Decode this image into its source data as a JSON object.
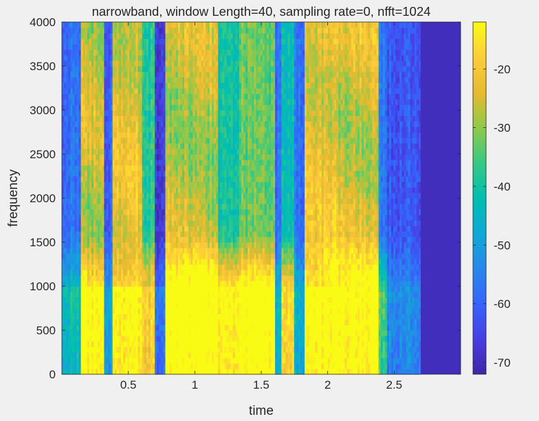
{
  "chart_data": {
    "type": "heatmap",
    "title": "narrowband, window Length=40, sampling rate=0, nfft=1024",
    "xlabel": "time",
    "ylabel": "frequency",
    "xlim": [
      0.0,
      3.0
    ],
    "ylim": [
      0,
      4000
    ],
    "x_ticks": [
      0.5,
      1,
      1.5,
      2,
      2.5
    ],
    "x_tick_labels": [
      "0.5",
      "1",
      "1.5",
      "2",
      "2.5"
    ],
    "y_ticks": [
      0,
      500,
      1000,
      1500,
      2000,
      2500,
      3000,
      3500,
      4000
    ],
    "y_tick_labels": [
      "0",
      "500",
      "1000",
      "1500",
      "2000",
      "2500",
      "3000",
      "3500",
      "4000"
    ],
    "colorbar": {
      "colormap": "parula",
      "range": [
        -72,
        -12
      ],
      "ticks": [
        -20,
        -30,
        -40,
        -50,
        -60,
        -70
      ],
      "tick_labels": [
        "-20",
        "-30",
        "-40",
        "-50",
        "-60",
        "-70"
      ]
    },
    "signal_end_time": 2.7,
    "silence_level": -70,
    "segments": [
      {
        "start": 0.0,
        "end": 0.15,
        "low_db": -45,
        "high_db": -58
      },
      {
        "start": 0.15,
        "end": 0.31,
        "low_db": -12,
        "high_db": -27
      },
      {
        "start": 0.31,
        "end": 0.38,
        "low_db": -50,
        "high_db": -60
      },
      {
        "start": 0.38,
        "end": 0.61,
        "low_db": -14,
        "high_db": -24
      },
      {
        "start": 0.61,
        "end": 0.7,
        "low_db": -20,
        "high_db": -38
      },
      {
        "start": 0.7,
        "end": 0.78,
        "low_db": -58,
        "high_db": -66
      },
      {
        "start": 0.78,
        "end": 1.18,
        "low_db": -10,
        "high_db": -27
      },
      {
        "start": 1.18,
        "end": 1.33,
        "low_db": -14,
        "high_db": -40
      },
      {
        "start": 1.33,
        "end": 1.6,
        "low_db": -10,
        "high_db": -33
      },
      {
        "start": 1.6,
        "end": 1.65,
        "low_db": -48,
        "high_db": -58
      },
      {
        "start": 1.65,
        "end": 1.75,
        "low_db": -18,
        "high_db": -42
      },
      {
        "start": 1.75,
        "end": 1.82,
        "low_db": -48,
        "high_db": -58
      },
      {
        "start": 1.82,
        "end": 2.07,
        "low_db": -12,
        "high_db": -23
      },
      {
        "start": 2.07,
        "end": 2.38,
        "low_db": -12,
        "high_db": -25
      },
      {
        "start": 2.38,
        "end": 2.44,
        "low_db": -36,
        "high_db": -55
      },
      {
        "start": 2.44,
        "end": 2.7,
        "low_db": -55,
        "high_db": -62
      }
    ]
  }
}
